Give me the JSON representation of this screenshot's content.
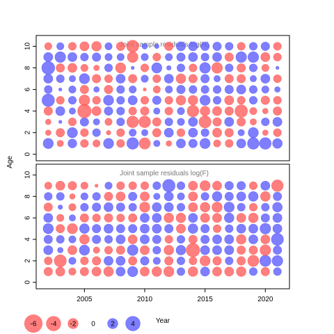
{
  "figure": {
    "ylabel": "Age",
    "xlabel": "Year",
    "colors": {
      "negative": "#ff5a5a",
      "positive": "#5a5aff",
      "alpha": 0.78
    },
    "legend": {
      "values": [
        -6,
        -4,
        -2,
        0,
        2,
        4
      ],
      "labels": [
        "-6",
        "-4",
        "-2",
        "0",
        "2",
        "4"
      ]
    }
  },
  "chart_data": [
    {
      "type": "bubble",
      "title": "Joint sample residuals log(N)",
      "xlim": [
        2001,
        2022
      ],
      "ylim": [
        -0.6,
        11.0
      ],
      "yticks": [
        0,
        2,
        4,
        6,
        8,
        10
      ],
      "years": [
        2002,
        2003,
        2004,
        2005,
        2006,
        2007,
        2008,
        2009,
        2010,
        2011,
        2012,
        2013,
        2014,
        2015,
        2016,
        2017,
        2018,
        2019,
        2020,
        2021
      ],
      "ages": [
        1,
        2,
        3,
        4,
        5,
        6,
        7,
        8,
        9,
        10
      ],
      "residuals": [
        [
          2.0,
          -0.8,
          1.5,
          -1.2,
          -1.0,
          2.0,
          -1.2,
          2.6,
          -2.4,
          0.8,
          -0.6,
          1.6,
          1.4,
          2.0,
          -1.0,
          -1.2,
          1.6,
          2.6,
          2.6,
          1.8
        ],
        [
          -0.6,
          -1.4,
          2.0,
          -1.2,
          1.2,
          -0.4,
          -1.2,
          1.0,
          0.8,
          -1.4,
          1.6,
          -1.2,
          1.6,
          1.2,
          -1.6,
          -1.4,
          0.8,
          2.0,
          -0.6,
          -1.2
        ],
        [
          -0.6,
          0.2,
          -1.2,
          1.4,
          0.8,
          -1.0,
          1.2,
          -2.6,
          -2.6,
          -1.4,
          1.2,
          1.0,
          1.6,
          -2.8,
          -1.4,
          1.6,
          -1.4,
          -0.8,
          1.2,
          1.6
        ],
        [
          -1.4,
          1.6,
          0.8,
          -3.5,
          -1.6,
          1.4,
          1.2,
          -1.2,
          -1.4,
          0.8,
          -1.2,
          1.0,
          -2.6,
          -1.8,
          -1.6,
          -1.4,
          -3.0,
          -1.0,
          -0.6,
          -1.4
        ],
        [
          3.0,
          -1.2,
          1.2,
          -2.2,
          -1.2,
          2.0,
          1.2,
          1.6,
          -1.2,
          1.4,
          -1.2,
          -1.8,
          -1.8,
          2.0,
          1.2,
          -1.6,
          -1.2,
          1.2,
          -1.4,
          -1.2
        ],
        [
          1.2,
          0.2,
          1.0,
          -1.4,
          0.6,
          -1.4,
          1.2,
          1.0,
          -0.2,
          -1.0,
          1.0,
          1.4,
          1.2,
          1.2,
          1.2,
          1.4,
          1.6,
          1.2,
          1.0,
          0.6
        ],
        [
          1.6,
          1.2,
          0.8,
          2.0,
          -1.4,
          -1.2,
          1.6,
          -1.4,
          1.0,
          -1.2,
          1.6,
          -1.8,
          -1.4,
          1.4,
          0.8,
          -1.4,
          -1.4,
          0.8,
          1.6,
          -1.2
        ],
        [
          3.2,
          -1.4,
          -1.6,
          -1.0,
          -0.6,
          1.2,
          -2.0,
          0.2,
          -1.2,
          2.0,
          0.4,
          1.2,
          -1.2,
          2.2,
          -2.2,
          1.2,
          -1.4,
          1.2,
          -1.0,
          0.2
        ],
        [
          1.6,
          2.2,
          1.6,
          1.2,
          1.4,
          1.0,
          1.0,
          -2.2,
          1.0,
          -1.2,
          1.0,
          1.4,
          1.6,
          1.2,
          1.6,
          -1.4,
          2.2,
          2.2,
          -1.6,
          -1.2
        ],
        [
          -1.0,
          1.0,
          -1.2,
          -1.6,
          -1.8,
          1.0,
          -1.4,
          -2.8,
          0.6,
          0.4,
          -1.4,
          1.6,
          1.6,
          1.4,
          1.4,
          1.2,
          -1.2,
          1.2,
          1.4,
          -1.2
        ]
      ]
    },
    {
      "type": "bubble",
      "title": "Joint sample residuals log(F)",
      "xlim": [
        2001,
        2022
      ],
      "ylim": [
        -0.6,
        11.0
      ],
      "yticks": [
        0,
        2,
        4,
        6,
        8,
        10
      ],
      "years": [
        2002,
        2003,
        2004,
        2005,
        2006,
        2007,
        2008,
        2009,
        2010,
        2011,
        2012,
        2013,
        2014,
        2015,
        2016,
        2017,
        2018,
        2019,
        2020,
        2021
      ],
      "ages": [
        1,
        2,
        3,
        4,
        5,
        6,
        7,
        8,
        9
      ],
      "residuals": [
        [
          -1.4,
          -1.6,
          -1.0,
          -1.4,
          -1.6,
          -1.8,
          1.6,
          2.0,
          -1.6,
          -1.8,
          -2.0,
          1.2,
          -1.8,
          1.6,
          -1.6,
          -1.6,
          -1.8,
          1.2,
          -1.4,
          1.2
        ],
        [
          -1.2,
          -2.8,
          1.0,
          -1.2,
          -1.4,
          1.6,
          1.6,
          -1.4,
          1.4,
          1.0,
          -1.4,
          1.2,
          -1.2,
          -2.0,
          -1.4,
          1.2,
          -1.4,
          -2.4,
          2.4,
          2.2
        ],
        [
          1.6,
          0.6,
          -1.6,
          2.0,
          -0.8,
          -1.2,
          -1.4,
          2.2,
          -1.6,
          1.2,
          -1.8,
          1.8,
          -3.5,
          1.6,
          1.6,
          1.6,
          -1.4,
          -1.4,
          -2.2,
          1.4
        ],
        [
          1.4,
          1.2,
          1.0,
          -1.8,
          1.4,
          1.2,
          1.6,
          -1.6,
          1.6,
          1.4,
          -1.2,
          1.2,
          -1.4,
          1.4,
          1.6,
          1.6,
          -1.8,
          1.6,
          -1.6,
          2.8
        ],
        [
          2.0,
          -1.4,
          -2.0,
          1.8,
          1.4,
          1.6,
          1.4,
          1.4,
          1.6,
          1.6,
          1.4,
          -1.6,
          1.8,
          1.4,
          -1.2,
          1.2,
          1.6,
          1.6,
          2.2,
          1.6
        ],
        [
          1.6,
          -1.0,
          0.8,
          -1.4,
          -1.2,
          -1.4,
          -1.2,
          -1.4,
          1.6,
          1.6,
          -1.8,
          -1.8,
          1.6,
          -1.6,
          -1.6,
          1.8,
          -1.6,
          -1.8,
          1.4,
          1.6
        ],
        [
          -1.4,
          0.4,
          -1.0,
          1.2,
          1.4,
          1.6,
          1.4,
          1.2,
          -2.0,
          1.6,
          1.6,
          1.2,
          -1.6,
          -1.8,
          -2.0,
          2.0,
          1.2,
          -1.2,
          1.2,
          1.8
        ],
        [
          1.2,
          1.2,
          -0.6,
          1.0,
          1.2,
          -1.4,
          -1.6,
          1.4,
          -1.6,
          0.8,
          1.6,
          1.0,
          -1.6,
          1.2,
          1.8,
          1.4,
          1.6,
          1.8,
          -1.8,
          1.4
        ],
        [
          -1.0,
          -1.6,
          -1.4,
          -1.0,
          -0.2,
          1.0,
          -1.2,
          -1.2,
          -1.2,
          1.2,
          3.0,
          1.2,
          -1.6,
          -2.0,
          -1.6,
          1.4,
          1.4,
          -1.2,
          1.6,
          -2.6
        ]
      ]
    }
  ]
}
